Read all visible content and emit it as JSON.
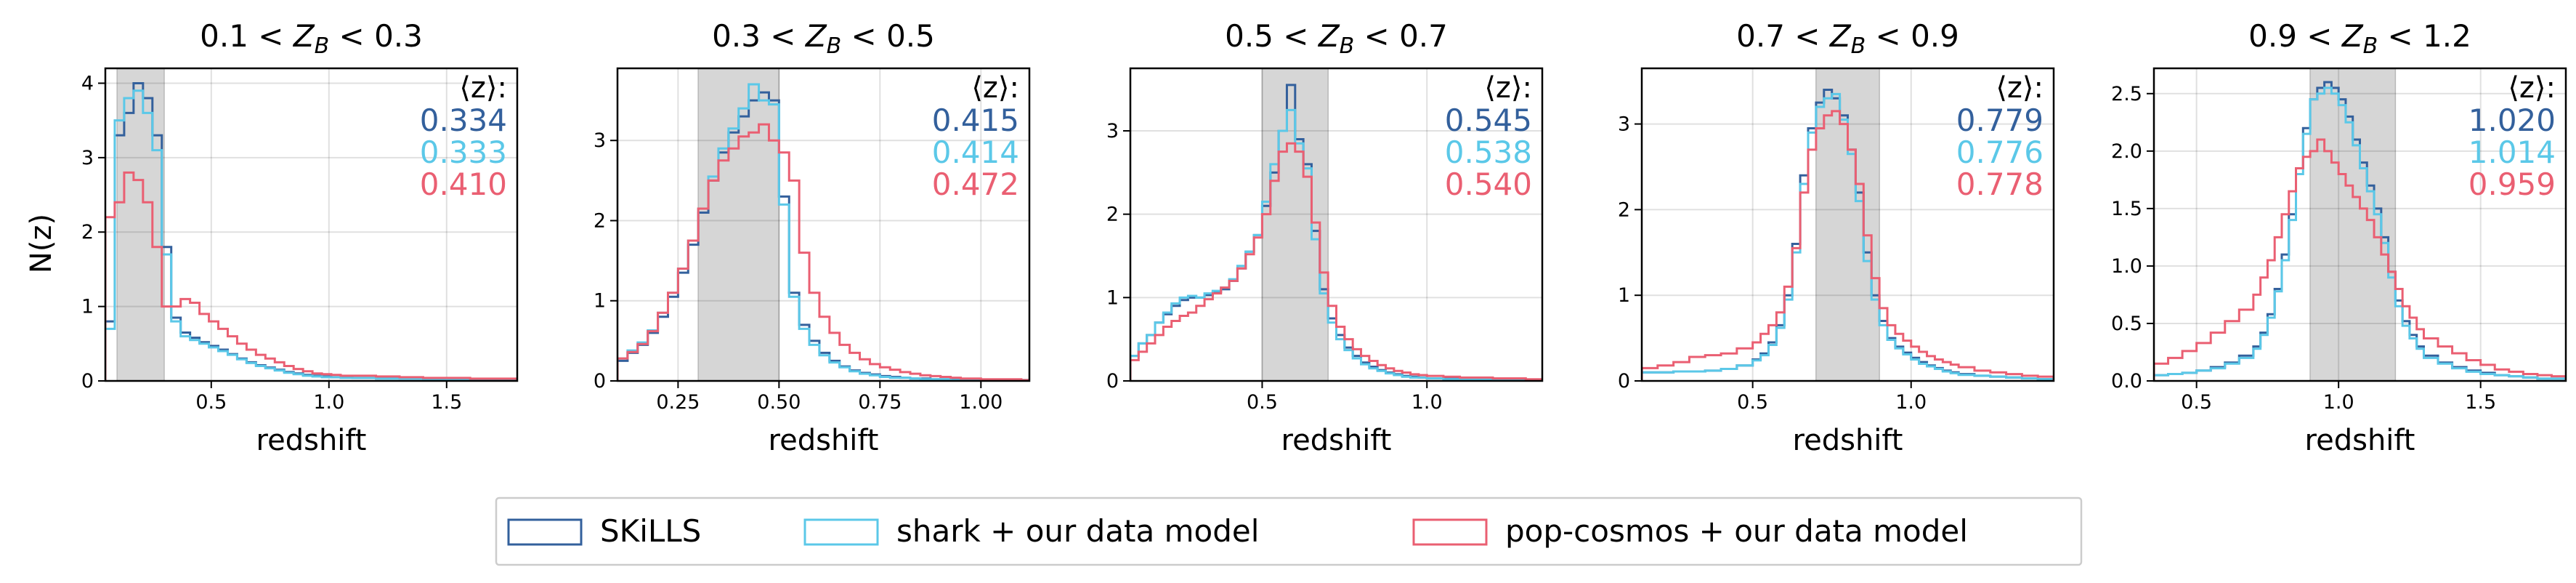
{
  "figure": {
    "ylabel": "N(z)",
    "xlabel": "redshift",
    "mean_label": "⟨z⟩:",
    "legend": [
      {
        "name": "SKiLLS",
        "color": "#33609c"
      },
      {
        "name": "shark + our data model",
        "color": "#5bc8e8"
      },
      {
        "name": "pop-cosmos + our data model",
        "color": "#ea5f72"
      }
    ]
  },
  "chart_data": [
    {
      "type": "histogram",
      "title": "0.1 < Z_B < 0.3",
      "title_parts": [
        "0.1 < ",
        "Z",
        "B",
        " < 0.3"
      ],
      "xlabel": "redshift",
      "ylabel": "N(z)",
      "xlim": [
        0.05,
        1.8
      ],
      "ylim": [
        0,
        4.2
      ],
      "xticks": [
        0.5,
        1.0,
        1.5
      ],
      "xtick_labels": [
        "0.5",
        "1.0",
        "1.5"
      ],
      "yticks": [
        0,
        1,
        2,
        3,
        4
      ],
      "ytick_labels": [
        "0",
        "1",
        "2",
        "3",
        "4"
      ],
      "shade": [
        0.1,
        0.3
      ],
      "grid": true,
      "bin_edges": [
        0.05,
        0.09,
        0.13,
        0.17,
        0.21,
        0.25,
        0.29,
        0.33,
        0.37,
        0.41,
        0.45,
        0.49,
        0.53,
        0.57,
        0.61,
        0.65,
        0.69,
        0.73,
        0.77,
        0.81,
        0.85,
        0.89,
        0.93,
        0.97,
        1.01,
        1.05,
        1.1,
        1.2,
        1.3,
        1.4,
        1.5,
        1.6,
        1.7,
        1.8
      ],
      "series": [
        {
          "name": "SKiLLS",
          "color": "#33609c",
          "mean": "0.334",
          "values": [
            0.8,
            3.3,
            3.6,
            4.0,
            3.8,
            3.3,
            1.8,
            0.85,
            0.65,
            0.58,
            0.52,
            0.47,
            0.42,
            0.36,
            0.3,
            0.25,
            0.21,
            0.18,
            0.15,
            0.12,
            0.1,
            0.08,
            0.07,
            0.06,
            0.05,
            0.05,
            0.04,
            0.04,
            0.03,
            0.03,
            0.02,
            0.02,
            0.02
          ]
        },
        {
          "name": "shark + our data model",
          "color": "#5bc8e8",
          "mean": "0.333",
          "values": [
            0.7,
            3.5,
            3.8,
            3.9,
            3.6,
            3.1,
            1.7,
            0.8,
            0.6,
            0.55,
            0.5,
            0.45,
            0.4,
            0.35,
            0.29,
            0.24,
            0.2,
            0.17,
            0.14,
            0.11,
            0.09,
            0.07,
            0.06,
            0.05,
            0.05,
            0.04,
            0.04,
            0.03,
            0.03,
            0.02,
            0.02,
            0.02,
            0.02
          ]
        },
        {
          "name": "pop-cosmos + our data model",
          "color": "#ea5f72",
          "mean": "0.410",
          "values": [
            2.2,
            2.4,
            2.8,
            2.7,
            2.4,
            1.8,
            1.0,
            1.0,
            1.1,
            1.05,
            0.9,
            0.8,
            0.7,
            0.6,
            0.5,
            0.42,
            0.35,
            0.3,
            0.25,
            0.2,
            0.16,
            0.13,
            0.1,
            0.09,
            0.08,
            0.07,
            0.07,
            0.06,
            0.05,
            0.04,
            0.04,
            0.03,
            0.03
          ]
        }
      ]
    },
    {
      "type": "histogram",
      "title": "0.3 < Z_B < 0.5",
      "title_parts": [
        "0.3 < ",
        "Z",
        "B",
        " < 0.5"
      ],
      "xlabel": "redshift",
      "ylabel": "N(z)",
      "xlim": [
        0.1,
        1.12
      ],
      "ylim": [
        0,
        3.9
      ],
      "xticks": [
        0.25,
        0.5,
        0.75,
        1.0
      ],
      "xtick_labels": [
        "0.25",
        "0.50",
        "0.75",
        "1.00"
      ],
      "yticks": [
        0,
        1,
        2,
        3
      ],
      "ytick_labels": [
        "0",
        "1",
        "2",
        "3"
      ],
      "shade": [
        0.3,
        0.5
      ],
      "grid": true,
      "bin_edges": [
        0.1,
        0.125,
        0.15,
        0.175,
        0.2,
        0.225,
        0.25,
        0.275,
        0.3,
        0.325,
        0.35,
        0.375,
        0.4,
        0.425,
        0.45,
        0.475,
        0.5,
        0.525,
        0.55,
        0.575,
        0.6,
        0.625,
        0.65,
        0.675,
        0.7,
        0.725,
        0.75,
        0.775,
        0.8,
        0.825,
        0.85,
        0.875,
        0.9,
        0.925,
        0.95,
        0.975,
        1.0,
        1.025,
        1.05,
        1.075,
        1.1,
        1.12
      ],
      "series": [
        {
          "name": "SKiLLS",
          "color": "#33609c",
          "mean": "0.415",
          "values": [
            0.25,
            0.35,
            0.45,
            0.6,
            0.8,
            1.05,
            1.35,
            1.7,
            2.1,
            2.5,
            2.85,
            3.1,
            3.3,
            3.5,
            3.6,
            3.5,
            2.3,
            1.1,
            0.7,
            0.5,
            0.35,
            0.25,
            0.18,
            0.13,
            0.1,
            0.08,
            0.06,
            0.05,
            0.04,
            0.03,
            0.03,
            0.02,
            0.02,
            0.02,
            0.01,
            0.01,
            0.01,
            0.01,
            0.01,
            0.01,
            0.01
          ]
        },
        {
          "name": "shark + our data model",
          "color": "#5bc8e8",
          "mean": "0.414",
          "values": [
            0.28,
            0.38,
            0.48,
            0.63,
            0.85,
            1.1,
            1.4,
            1.75,
            2.15,
            2.55,
            2.9,
            3.15,
            3.4,
            3.7,
            3.5,
            3.45,
            2.2,
            1.05,
            0.65,
            0.45,
            0.32,
            0.23,
            0.17,
            0.12,
            0.09,
            0.07,
            0.05,
            0.04,
            0.04,
            0.03,
            0.02,
            0.02,
            0.02,
            0.01,
            0.01,
            0.01,
            0.01,
            0.01,
            0.01,
            0.01,
            0.01
          ]
        },
        {
          "name": "pop-cosmos + our data model",
          "color": "#ea5f72",
          "mean": "0.472",
          "values": [
            0.28,
            0.36,
            0.46,
            0.62,
            0.85,
            1.1,
            1.4,
            1.75,
            2.15,
            2.5,
            2.75,
            2.9,
            3.05,
            3.1,
            3.2,
            3.0,
            2.85,
            2.5,
            1.6,
            1.1,
            0.8,
            0.6,
            0.45,
            0.35,
            0.27,
            0.21,
            0.17,
            0.14,
            0.11,
            0.09,
            0.07,
            0.06,
            0.05,
            0.04,
            0.03,
            0.03,
            0.02,
            0.02,
            0.02,
            0.02,
            0.01
          ]
        }
      ]
    },
    {
      "type": "histogram",
      "title": "0.5 < Z_B < 0.7",
      "title_parts": [
        "0.5 < ",
        "Z",
        "B",
        " < 0.7"
      ],
      "xlabel": "redshift",
      "ylabel": "N(z)",
      "xlim": [
        0.1,
        1.35
      ],
      "ylim": [
        0,
        3.75
      ],
      "xticks": [
        0.5,
        1.0
      ],
      "xtick_labels": [
        "0.5",
        "1.0"
      ],
      "yticks": [
        0,
        1,
        2,
        3
      ],
      "ytick_labels": [
        "0",
        "1",
        "2",
        "3"
      ],
      "shade": [
        0.5,
        0.7
      ],
      "grid": true,
      "bin_edges": [
        0.1,
        0.125,
        0.15,
        0.175,
        0.2,
        0.225,
        0.25,
        0.275,
        0.3,
        0.325,
        0.35,
        0.375,
        0.4,
        0.425,
        0.45,
        0.475,
        0.5,
        0.525,
        0.55,
        0.575,
        0.6,
        0.625,
        0.65,
        0.675,
        0.7,
        0.725,
        0.75,
        0.775,
        0.8,
        0.825,
        0.85,
        0.875,
        0.9,
        0.925,
        0.95,
        0.975,
        1.0,
        1.05,
        1.1,
        1.15,
        1.2,
        1.25,
        1.3,
        1.35
      ],
      "series": [
        {
          "name": "SKiLLS",
          "color": "#33609c",
          "mean": "0.545",
          "values": [
            0.3,
            0.45,
            0.55,
            0.7,
            0.8,
            0.9,
            0.97,
            1.0,
            1.0,
            1.03,
            1.07,
            1.1,
            1.2,
            1.35,
            1.55,
            1.75,
            2.1,
            2.5,
            3.0,
            3.55,
            2.9,
            2.6,
            1.8,
            1.1,
            0.75,
            0.55,
            0.4,
            0.3,
            0.22,
            0.17,
            0.13,
            0.1,
            0.08,
            0.06,
            0.05,
            0.04,
            0.03,
            0.03,
            0.02,
            0.02,
            0.02,
            0.01,
            0.01
          ]
        },
        {
          "name": "shark + our data model",
          "color": "#5bc8e8",
          "mean": "0.538",
          "values": [
            0.3,
            0.45,
            0.55,
            0.7,
            0.82,
            0.93,
            1.0,
            1.02,
            1.0,
            1.05,
            1.08,
            1.12,
            1.22,
            1.38,
            1.55,
            1.75,
            2.15,
            2.6,
            3.0,
            3.25,
            2.85,
            2.55,
            1.7,
            1.05,
            0.7,
            0.5,
            0.37,
            0.27,
            0.2,
            0.15,
            0.12,
            0.09,
            0.07,
            0.05,
            0.04,
            0.04,
            0.03,
            0.02,
            0.02,
            0.02,
            0.01,
            0.01,
            0.01
          ]
        },
        {
          "name": "pop-cosmos + our data model",
          "color": "#ea5f72",
          "mean": "0.540",
          "values": [
            0.25,
            0.35,
            0.45,
            0.55,
            0.65,
            0.72,
            0.78,
            0.82,
            0.9,
            0.98,
            1.05,
            1.12,
            1.2,
            1.35,
            1.52,
            1.72,
            2.0,
            2.4,
            2.75,
            2.85,
            2.75,
            2.45,
            1.9,
            1.3,
            0.9,
            0.65,
            0.5,
            0.38,
            0.3,
            0.24,
            0.19,
            0.15,
            0.12,
            0.1,
            0.08,
            0.07,
            0.06,
            0.05,
            0.04,
            0.04,
            0.03,
            0.03,
            0.02
          ]
        }
      ]
    },
    {
      "type": "histogram",
      "title": "0.7 < Z_B < 0.9",
      "title_parts": [
        "0.7 < ",
        "Z",
        "B",
        " < 0.9"
      ],
      "xlabel": "redshift",
      "ylabel": "N(z)",
      "xlim": [
        0.15,
        1.45
      ],
      "ylim": [
        0,
        3.65
      ],
      "xticks": [
        0.5,
        1.0
      ],
      "xtick_labels": [
        "0.5",
        "1.0"
      ],
      "yticks": [
        0,
        1,
        2,
        3
      ],
      "ytick_labels": [
        "0",
        "1",
        "2",
        "3"
      ],
      "shade": [
        0.7,
        0.9
      ],
      "grid": true,
      "bin_edges": [
        0.15,
        0.2,
        0.25,
        0.3,
        0.35,
        0.4,
        0.45,
        0.5,
        0.525,
        0.55,
        0.575,
        0.6,
        0.625,
        0.65,
        0.675,
        0.7,
        0.725,
        0.75,
        0.775,
        0.8,
        0.825,
        0.85,
        0.875,
        0.9,
        0.925,
        0.95,
        0.975,
        1.0,
        1.025,
        1.05,
        1.075,
        1.1,
        1.125,
        1.15,
        1.2,
        1.25,
        1.3,
        1.35,
        1.4,
        1.45
      ],
      "series": [
        {
          "name": "SKiLLS",
          "color": "#33609c",
          "mean": "0.779",
          "values": [
            0.1,
            0.1,
            0.11,
            0.11,
            0.12,
            0.14,
            0.18,
            0.25,
            0.32,
            0.45,
            0.65,
            1.0,
            1.6,
            2.4,
            2.95,
            3.25,
            3.4,
            3.3,
            3.1,
            2.7,
            2.2,
            1.5,
            1.0,
            0.7,
            0.5,
            0.4,
            0.33,
            0.27,
            0.22,
            0.18,
            0.15,
            0.12,
            0.1,
            0.08,
            0.06,
            0.05,
            0.04,
            0.03,
            0.02
          ]
        },
        {
          "name": "shark + our data model",
          "color": "#5bc8e8",
          "mean": "0.776",
          "values": [
            0.1,
            0.1,
            0.11,
            0.11,
            0.12,
            0.14,
            0.18,
            0.24,
            0.3,
            0.42,
            0.62,
            0.95,
            1.5,
            2.3,
            2.9,
            3.2,
            3.3,
            3.35,
            3.05,
            2.65,
            2.1,
            1.4,
            0.95,
            0.65,
            0.48,
            0.38,
            0.31,
            0.25,
            0.2,
            0.17,
            0.14,
            0.11,
            0.09,
            0.07,
            0.06,
            0.05,
            0.04,
            0.03,
            0.02
          ]
        },
        {
          "name": "pop-cosmos + our data model",
          "color": "#ea5f72",
          "mean": "0.778",
          "values": [
            0.15,
            0.18,
            0.22,
            0.28,
            0.3,
            0.32,
            0.38,
            0.45,
            0.55,
            0.65,
            0.8,
            1.1,
            1.55,
            2.2,
            2.7,
            2.95,
            3.1,
            3.15,
            3.0,
            2.7,
            2.3,
            1.7,
            1.2,
            0.85,
            0.65,
            0.55,
            0.47,
            0.4,
            0.34,
            0.29,
            0.25,
            0.22,
            0.19,
            0.16,
            0.12,
            0.1,
            0.08,
            0.06,
            0.05
          ]
        }
      ]
    },
    {
      "type": "histogram",
      "title": "0.9 < Z_B < 1.2",
      "title_parts": [
        "0.9 < ",
        "Z",
        "B",
        " < 1.2"
      ],
      "xlabel": "redshift",
      "ylabel": "N(z)",
      "xlim": [
        0.35,
        1.8
      ],
      "ylim": [
        0,
        2.72
      ],
      "xticks": [
        0.5,
        1.0,
        1.5
      ],
      "xtick_labels": [
        "0.5",
        "1.0",
        "1.5"
      ],
      "yticks": [
        0,
        0.5,
        1.0,
        1.5,
        2.0,
        2.5
      ],
      "ytick_labels": [
        "0.0",
        "0.5",
        "1.0",
        "1.5",
        "2.0",
        "2.5"
      ],
      "shade": [
        0.9,
        1.2
      ],
      "grid": true,
      "bin_edges": [
        0.35,
        0.4,
        0.45,
        0.5,
        0.55,
        0.6,
        0.65,
        0.7,
        0.725,
        0.75,
        0.775,
        0.8,
        0.825,
        0.85,
        0.875,
        0.9,
        0.925,
        0.95,
        0.975,
        1.0,
        1.025,
        1.05,
        1.075,
        1.1,
        1.125,
        1.15,
        1.175,
        1.2,
        1.225,
        1.25,
        1.275,
        1.3,
        1.35,
        1.4,
        1.45,
        1.5,
        1.55,
        1.6,
        1.65,
        1.7,
        1.75,
        1.8
      ],
      "series": [
        {
          "name": "SKiLLS",
          "color": "#33609c",
          "mean": "1.020",
          "values": [
            0.05,
            0.06,
            0.07,
            0.09,
            0.12,
            0.16,
            0.22,
            0.3,
            0.42,
            0.58,
            0.8,
            1.1,
            1.45,
            1.85,
            2.2,
            2.45,
            2.55,
            2.6,
            2.55,
            2.45,
            2.3,
            2.1,
            1.9,
            1.7,
            1.5,
            1.25,
            0.95,
            0.7,
            0.52,
            0.4,
            0.3,
            0.22,
            0.16,
            0.12,
            0.09,
            0.07,
            0.05,
            0.04,
            0.03,
            0.02,
            0.02
          ]
        },
        {
          "name": "shark + our data model",
          "color": "#5bc8e8",
          "mean": "1.014",
          "values": [
            0.05,
            0.06,
            0.07,
            0.09,
            0.11,
            0.15,
            0.2,
            0.28,
            0.4,
            0.55,
            0.78,
            1.05,
            1.4,
            1.8,
            2.15,
            2.45,
            2.5,
            2.55,
            2.5,
            2.4,
            2.25,
            2.05,
            1.85,
            1.65,
            1.45,
            1.2,
            0.9,
            0.65,
            0.48,
            0.37,
            0.28,
            0.2,
            0.15,
            0.11,
            0.08,
            0.06,
            0.05,
            0.04,
            0.03,
            0.02,
            0.02
          ]
        },
        {
          "name": "pop-cosmos + our data model",
          "color": "#ea5f72",
          "mean": "0.959",
          "values": [
            0.15,
            0.2,
            0.26,
            0.33,
            0.42,
            0.52,
            0.62,
            0.75,
            0.9,
            1.05,
            1.25,
            1.45,
            1.65,
            1.85,
            1.95,
            2.0,
            2.1,
            2.0,
            1.9,
            1.8,
            1.7,
            1.6,
            1.5,
            1.4,
            1.25,
            1.1,
            0.95,
            0.8,
            0.65,
            0.55,
            0.45,
            0.37,
            0.3,
            0.24,
            0.18,
            0.14,
            0.1,
            0.08,
            0.06,
            0.05,
            0.04
          ]
        }
      ]
    }
  ]
}
